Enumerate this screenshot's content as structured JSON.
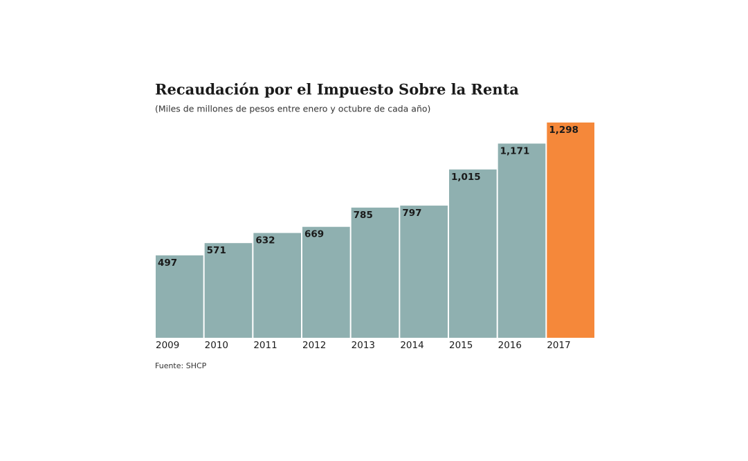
{
  "chart_data": {
    "type": "bar",
    "title": "Recaudación por el Impuesto Sobre la Renta",
    "subtitle": "(Miles de millones de pesos entre enero y octubre de cada año)",
    "categories": [
      "2009",
      "2010",
      "2011",
      "2012",
      "2013",
      "2014",
      "2015",
      "2016",
      "2017"
    ],
    "values": [
      497,
      571,
      632,
      669,
      785,
      797,
      1015,
      1171,
      1298
    ],
    "value_labels": [
      "497",
      "571",
      "632",
      "669",
      "785",
      "797",
      "1,015",
      "1,171",
      "1,298"
    ],
    "colors": [
      "#8fb0b0",
      "#8fb0b0",
      "#8fb0b0",
      "#8fb0b0",
      "#8fb0b0",
      "#8fb0b0",
      "#8fb0b0",
      "#8fb0b0",
      "#f5883a"
    ],
    "source": "Fuente: SHCP"
  }
}
